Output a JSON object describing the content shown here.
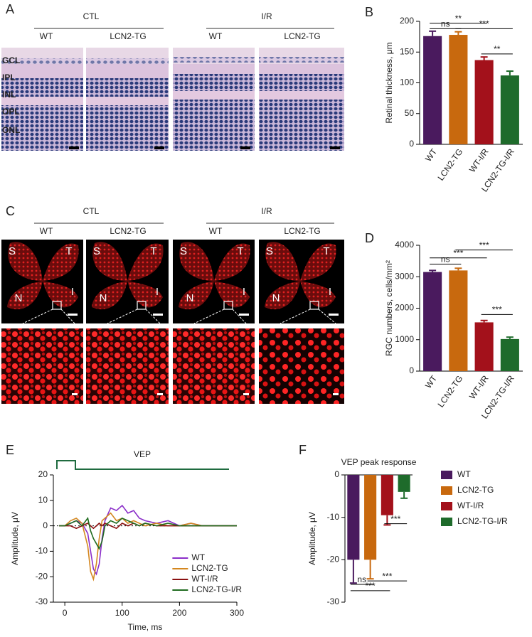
{
  "panels": {
    "A": {
      "label": "A",
      "groups": [
        {
          "title": "CTL",
          "columns": [
            "WT",
            "LCN2-TG"
          ]
        },
        {
          "title": "I/R",
          "columns": [
            "WT",
            "LCN2-TG"
          ]
        }
      ],
      "layers": [
        "GCL",
        "IPL",
        "INL",
        "OPL",
        "ONL"
      ]
    },
    "C": {
      "label": "C",
      "groups": [
        {
          "title": "CTL",
          "columns": [
            "WT",
            "LCN2-TG"
          ]
        },
        {
          "title": "I/R",
          "columns": [
            "WT",
            "LCN2-TG"
          ]
        }
      ],
      "quadrants": [
        "S",
        "T",
        "N",
        "I"
      ]
    }
  },
  "chart_data": [
    {
      "type": "bar",
      "label": "B",
      "ylabel": "Retinal thickness, μm",
      "categories": [
        "WT",
        "LCN2-TG",
        "WT-I/R",
        "LCN2-TG-I/R"
      ],
      "values": [
        176,
        178,
        137,
        112
      ],
      "errors": [
        8,
        5,
        5,
        7
      ],
      "colors": [
        "#4a1a5e",
        "#c8690e",
        "#a3111b",
        "#1e6b2b"
      ],
      "ylim": [
        0,
        200
      ],
      "yticks": [
        0,
        50,
        100,
        150,
        200
      ],
      "annotations": [
        {
          "text": "**",
          "from": 0,
          "to": 2,
          "y": 197
        },
        {
          "text": "ns",
          "from": 0,
          "to": 1,
          "y": 188
        },
        {
          "text": "***",
          "from": 1,
          "to": 3,
          "y": 188
        },
        {
          "text": "**",
          "from": 2,
          "to": 3,
          "y": 147
        }
      ]
    },
    {
      "type": "bar",
      "label": "D",
      "ylabel": "RGC numbers, cells/mm²",
      "categories": [
        "WT",
        "LCN2-TG",
        "WT-I/R",
        "LCN2-TG-I/R"
      ],
      "values": [
        3150,
        3200,
        1550,
        1020
      ],
      "errors": [
        50,
        70,
        60,
        60
      ],
      "colors": [
        "#4a1a5e",
        "#c8690e",
        "#a3111b",
        "#1e6b2b"
      ],
      "ylim": [
        0,
        4000
      ],
      "yticks": [
        0,
        1000,
        2000,
        3000,
        4000
      ],
      "annotations": [
        {
          "text": "ns",
          "from": 0,
          "to": 1,
          "y": 3400
        },
        {
          "text": "***",
          "from": 0,
          "to": 2,
          "y": 3600
        },
        {
          "text": "***",
          "from": 1,
          "to": 3,
          "y": 3850
        },
        {
          "text": "***",
          "from": 2,
          "to": 3,
          "y": 1800
        }
      ]
    },
    {
      "type": "line",
      "label": "E",
      "title": "VEP",
      "xlabel": "Time, ms",
      "ylabel": "Amplitude, μV",
      "x": [
        -10,
        0,
        10,
        20,
        30,
        40,
        45,
        50,
        55,
        60,
        65,
        70,
        80,
        90,
        100,
        110,
        120,
        130,
        140,
        160,
        180,
        200,
        220,
        240,
        260,
        280,
        300
      ],
      "series": [
        {
          "name": "WT",
          "color": "#8b2fc9",
          "values": [
            0,
            0,
            1,
            2,
            1,
            -3,
            -10,
            -17,
            -19,
            -15,
            -5,
            2,
            7,
            6,
            8,
            5,
            6,
            3,
            2,
            1,
            2,
            0,
            1,
            0,
            0,
            0,
            0
          ]
        },
        {
          "name": "LCN2-TG",
          "color": "#d4871f",
          "values": [
            0,
            0,
            2,
            3,
            1,
            -8,
            -18,
            -21,
            -15,
            -5,
            2,
            3,
            5,
            2,
            3,
            1,
            2,
            1,
            0,
            1,
            0,
            0,
            1,
            0,
            0,
            0,
            0
          ]
        },
        {
          "name": "WT-I/R",
          "color": "#8a1010",
          "values": [
            0,
            0,
            0,
            -1,
            0,
            1,
            0,
            -1,
            0,
            1,
            0,
            1,
            0,
            -1,
            1,
            0,
            1,
            0,
            1,
            0,
            0,
            0,
            0,
            0,
            0,
            0,
            0
          ]
        },
        {
          "name": "LCN2-TG-I/R",
          "color": "#1f6b1f",
          "values": [
            0,
            0,
            1,
            2,
            0,
            3,
            -2,
            -5,
            -7,
            -9,
            -6,
            0,
            2,
            1,
            3,
            2,
            1,
            0,
            1,
            0,
            1,
            0,
            0,
            0,
            0,
            0,
            0
          ]
        }
      ],
      "xlim": [
        -20,
        300
      ],
      "xticks": [
        0,
        100,
        200,
        300
      ],
      "ylim": [
        -30,
        20
      ],
      "yticks": [
        -30,
        -20,
        -10,
        0,
        10,
        20
      ],
      "legend": "lower right"
    },
    {
      "type": "bar",
      "label": "F",
      "title": "VEP peak response",
      "ylabel": "Amplitude, μV",
      "categories": [
        "WT",
        "LCN2-TG",
        "WT-I/R",
        "LCN2-TG-I/R"
      ],
      "values": [
        -20,
        -20,
        -9.5,
        -4
      ],
      "errors": [
        5.5,
        4.5,
        2.3,
        1.5
      ],
      "colors": [
        "#4a1a5e",
        "#c8690e",
        "#a3111b",
        "#1e6b2b"
      ],
      "ylim": [
        -30,
        0
      ],
      "yticks": [
        0,
        -10,
        -20,
        -30
      ],
      "legend": "right",
      "annotations": [
        {
          "text": "***",
          "from": 2,
          "to": 3,
          "y": -11.5
        },
        {
          "text": "ns",
          "from": 0,
          "to": 1,
          "y": -25.8
        },
        {
          "text": "***",
          "from": 1,
          "to": 3,
          "y": -25
        },
        {
          "text": "***",
          "from": 0,
          "to": 2,
          "y": -27.3
        }
      ]
    }
  ]
}
